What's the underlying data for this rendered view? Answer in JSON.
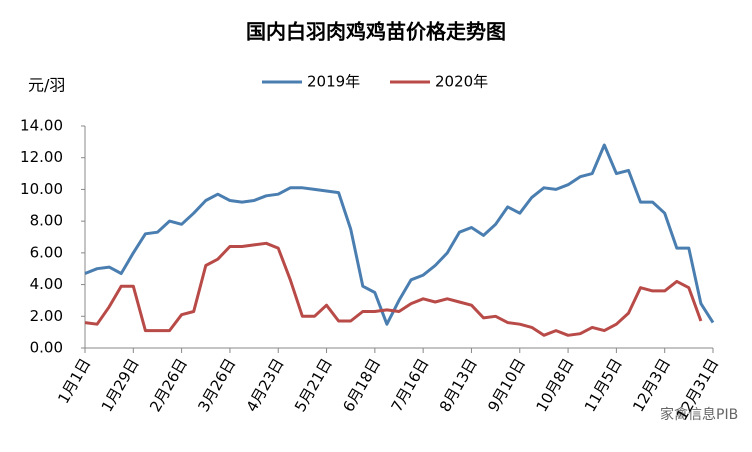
{
  "chart_data": {
    "type": "line",
    "title": "国内白羽肉鸡鸡苗价格走势图",
    "y_unit": "元/羽",
    "watermark": "家禽信息PIB",
    "categories": [
      "1月1日",
      null,
      null,
      null,
      "1月29日",
      null,
      null,
      null,
      "2月26日",
      null,
      null,
      null,
      "3月26日",
      null,
      null,
      null,
      "4月23日",
      null,
      null,
      null,
      "5月21日",
      null,
      null,
      null,
      "6月18日",
      null,
      null,
      null,
      "7月16日",
      null,
      null,
      null,
      "8月13日",
      null,
      null,
      null,
      "9月10日",
      null,
      null,
      null,
      "10月8日",
      null,
      null,
      null,
      "11月5日",
      null,
      null,
      null,
      "12月3日",
      null,
      null,
      null,
      "12月31日"
    ],
    "series": [
      {
        "name": "2019年",
        "color": "#4a7eb0",
        "values": [
          4.7,
          5.0,
          5.1,
          4.7,
          6.0,
          7.2,
          7.3,
          8.0,
          7.8,
          8.5,
          9.3,
          9.7,
          9.3,
          9.2,
          9.3,
          9.6,
          9.7,
          10.1,
          10.1,
          10.0,
          9.9,
          9.8,
          7.5,
          3.9,
          3.5,
          1.5,
          3.0,
          4.3,
          4.6,
          5.2,
          6.0,
          7.3,
          7.6,
          7.1,
          7.8,
          8.9,
          8.5,
          9.5,
          10.1,
          10.0,
          10.3,
          10.8,
          11.0,
          12.8,
          11.0,
          11.2,
          9.2,
          9.2,
          8.5,
          6.3,
          6.3,
          2.8,
          1.6
        ]
      },
      {
        "name": "2020年",
        "color": "#b84a47",
        "values": [
          1.6,
          1.5,
          2.6,
          3.9,
          3.9,
          1.1,
          1.1,
          1.1,
          2.1,
          2.3,
          5.2,
          5.6,
          6.4,
          6.4,
          6.5,
          6.6,
          6.3,
          4.3,
          2.0,
          2.0,
          2.7,
          1.7,
          1.7,
          2.3,
          2.3,
          2.4,
          2.3,
          2.8,
          3.1,
          2.9,
          3.1,
          2.9,
          2.7,
          1.9,
          2.0,
          1.6,
          1.5,
          1.3,
          0.8,
          1.1,
          0.8,
          0.9,
          1.3,
          1.1,
          1.5,
          2.2,
          3.8,
          3.6,
          3.6,
          4.2,
          3.8,
          1.7,
          null
        ]
      }
    ],
    "ylim": [
      0,
      14
    ],
    "yticks": [
      {
        "value": 0,
        "label": "0.00"
      },
      {
        "value": 2,
        "label": "2.00"
      },
      {
        "value": 4,
        "label": "4.00"
      },
      {
        "value": 6,
        "label": "6.00"
      },
      {
        "value": 8,
        "label": "8.00"
      },
      {
        "value": 10,
        "label": "10.00"
      },
      {
        "value": 12,
        "label": "12.00"
      },
      {
        "value": 14,
        "label": "14.00"
      }
    ],
    "grid": false
  }
}
